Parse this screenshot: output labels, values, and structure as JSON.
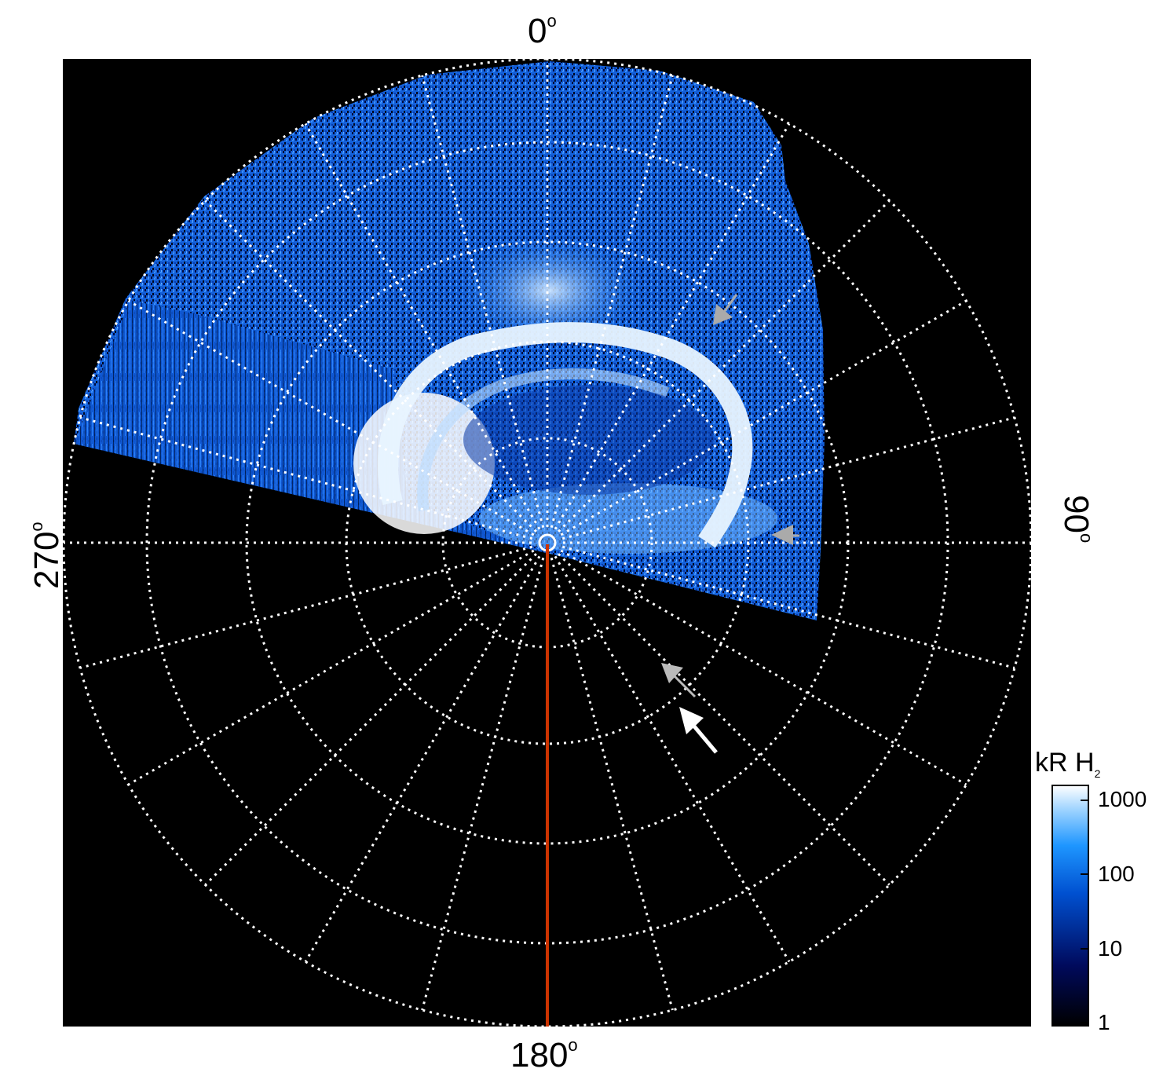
{
  "axis_labels": {
    "top": "0",
    "right": "90",
    "bottom": "180",
    "left": "270",
    "degree_symbol": "o"
  },
  "colorbar": {
    "unit": "kR H",
    "unit_subscript": "2",
    "ticks": [
      "1000",
      "100",
      "10",
      "1"
    ],
    "scale": "log"
  },
  "colors": {
    "background": "#000000",
    "grid": "#ffffff",
    "meridian_line": "#cc3300",
    "arrow_white": "#ffffff",
    "arrow_gray": "#aaaaaa",
    "aurora_low": "#00104a",
    "aurora_mid": "#1e78e6",
    "aurora_high": "#ffffff"
  },
  "features": [
    "polar-grid",
    "auroral-emission",
    "dusk-line",
    "annotation-arrows",
    "colorbar"
  ]
}
